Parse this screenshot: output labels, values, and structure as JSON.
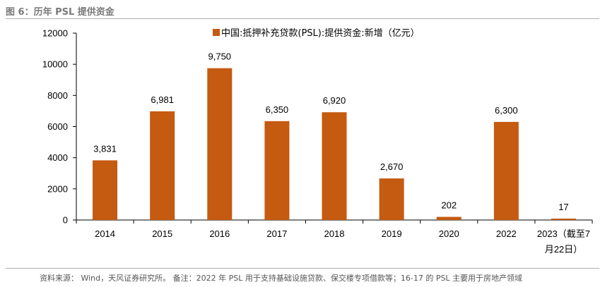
{
  "figure_title": "图 6：历年 PSL 提供资金",
  "source_note": "资料来源： Wind，天风证券研究所。 备注：2022 年 PSL 用于支持基础设施贷款、保交楼专项借款等；16-17 的 PSL 主要用于房地产领域",
  "colors": {
    "bar": "#c55a11",
    "axis": "#000000",
    "rule": "#b0b0b0"
  },
  "chart_data": {
    "type": "bar",
    "title": "",
    "xlabel": "",
    "ylabel": "",
    "categories": [
      "2014",
      "2015",
      "2016",
      "2017",
      "2018",
      "2019",
      "2020",
      "2022",
      "2023（截至7月22日）"
    ],
    "category_lines": [
      [
        "2014"
      ],
      [
        "2015"
      ],
      [
        "2016"
      ],
      [
        "2017"
      ],
      [
        "2018"
      ],
      [
        "2019"
      ],
      [
        "2020"
      ],
      [
        "2022"
      ],
      [
        "2023（截至7",
        "月22日）"
      ]
    ],
    "series": [
      {
        "name": "中国:抵押补充贷款(PSL):提供资金:新增（亿元）",
        "values": [
          3831,
          6981,
          9750,
          6350,
          6920,
          2670,
          202,
          6300,
          17
        ]
      }
    ],
    "data_labels": [
      "3,831",
      "6,981",
      "9,750",
      "6,350",
      "6,920",
      "2,670",
      "202",
      "6,300",
      "17"
    ],
    "ylim": [
      0,
      12000
    ],
    "yticks": [
      0,
      2000,
      4000,
      6000,
      8000,
      10000,
      12000
    ],
    "ytick_labels": [
      "0",
      "2000",
      "4000",
      "6000",
      "8000",
      "10000",
      "12000"
    ],
    "grid": false,
    "legend_position": "top-center"
  }
}
